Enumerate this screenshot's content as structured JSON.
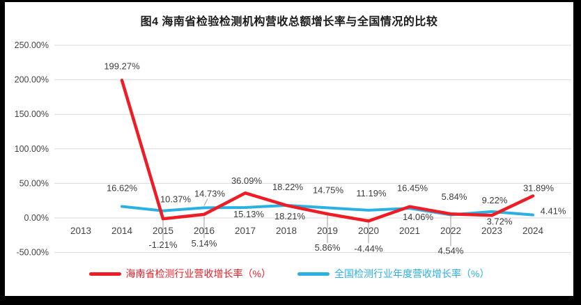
{
  "title": "图4 海南省检验检测机构营收总额增长率与全国情况的比较",
  "colors": {
    "frame": "#000000",
    "background": "#ffffff",
    "grid": "#d9d9d9",
    "leader": "#9e9e9e",
    "text": "#404040",
    "title": "#1a1a1a"
  },
  "chart_data": {
    "type": "line",
    "title": "图4 海南省检验检测机构营收总额增长率与全国情况的比较",
    "categories": [
      "2013",
      "2014",
      "2015",
      "2016",
      "2017",
      "2018",
      "2019",
      "2020",
      "2021",
      "2022",
      "2023",
      "2024"
    ],
    "ylim": [
      -50,
      250
    ],
    "grid": true,
    "legend_position": "bottom",
    "yticks": [
      {
        "value": 250,
        "label": "250.00%"
      },
      {
        "value": 200,
        "label": "200.00%"
      },
      {
        "value": 150,
        "label": "150.00%"
      },
      {
        "value": 100,
        "label": "100.00%"
      },
      {
        "value": 50,
        "label": "50.00%"
      },
      {
        "value": 0,
        "label": "0.00%"
      },
      {
        "value": -50,
        "label": "-50.00%"
      }
    ],
    "series": [
      {
        "name": "海南省检测行业营收增长率（%）",
        "color": "#ee1c25",
        "width": 4.5,
        "points": [
          {
            "x": "2013",
            "v": null
          },
          {
            "x": "2014",
            "v": 199.27,
            "label": "199.27%",
            "dx": 0,
            "dy": -20
          },
          {
            "x": "2015",
            "v": -1.21,
            "label": "-1.21%",
            "dx": 0,
            "dy": 38,
            "leader": {
              "dy1": 2,
              "dy2": 31
            }
          },
          {
            "x": "2016",
            "v": 5.14,
            "label": "5.14%",
            "dx": 0,
            "dy": 42,
            "leader": {
              "dy1": 3,
              "dy2": 34
            }
          },
          {
            "x": "2017",
            "v": 36.09,
            "label": "36.09%",
            "dx": 2,
            "dy": -17
          },
          {
            "x": "2018",
            "v": 18.22,
            "label": "18.22%",
            "dx": 2,
            "dy": -26
          },
          {
            "x": "2019",
            "v": 5.86,
            "label": "5.86%",
            "dx": 0,
            "dy": 49,
            "leader": {
              "dy1": 2,
              "dy2": 42
            }
          },
          {
            "x": "2020",
            "v": -4.44,
            "label": "-4.44%",
            "dx": 0,
            "dy": 40,
            "leader": {
              "dy1": 2,
              "dy2": 32
            }
          },
          {
            "x": "2021",
            "v": 16.45,
            "label": "16.45%",
            "dx": 4,
            "dy": -26
          },
          {
            "x": "2022",
            "v": 5.84,
            "label": "5.84%",
            "dx": 5,
            "dy": -24
          },
          {
            "x": "2023",
            "v": 3.72,
            "label": "3.72%",
            "dx": 11,
            "dy": 9
          },
          {
            "x": "2024",
            "v": 31.89,
            "label": "31.89%",
            "dx": 8,
            "dy": -11
          }
        ]
      },
      {
        "name": "全国检测行业年度营收增长率（%）",
        "color": "#2bb0e2",
        "width": 4,
        "points": [
          {
            "x": "2013",
            "v": null
          },
          {
            "x": "2014",
            "v": 16.62,
            "label": "16.62%",
            "dx": 0,
            "dy": -26
          },
          {
            "x": "2015",
            "v": 10.37,
            "label": "10.37%",
            "dx": 18,
            "dy": -16
          },
          {
            "x": "2016",
            "v": 14.73,
            "label": "14.73%",
            "dx": 8,
            "dy": -20,
            "leader": {
              "dy1": -3,
              "dx2": 5,
              "dy2": -13
            }
          },
          {
            "x": "2017",
            "v": 15.13,
            "label": "15.13%",
            "dx": 5,
            "dy": 10
          },
          {
            "x": "2018",
            "v": 18.21,
            "label": "18.21%",
            "dx": 5,
            "dy": 16
          },
          {
            "x": "2019",
            "v": 14.75,
            "label": "14.75%",
            "dx": 1,
            "dy": -25
          },
          {
            "x": "2020",
            "v": 11.19,
            "label": "11.19%",
            "dx": 4,
            "dy": -24
          },
          {
            "x": "2021",
            "v": 14.06,
            "label": "14.06%",
            "dx": 12,
            "dy": 13
          },
          {
            "x": "2022",
            "v": 4.54,
            "label": "4.54%",
            "dx": 0,
            "dy": 52,
            "leader": {
              "dy1": 2,
              "dy2": 45
            }
          },
          {
            "x": "2023",
            "v": 9.22,
            "label": "9.22%",
            "dx": 4,
            "dy": -16
          },
          {
            "x": "2024",
            "v": 4.41,
            "label": "4.41%",
            "dx": 29,
            "dy": -5
          }
        ]
      }
    ]
  }
}
